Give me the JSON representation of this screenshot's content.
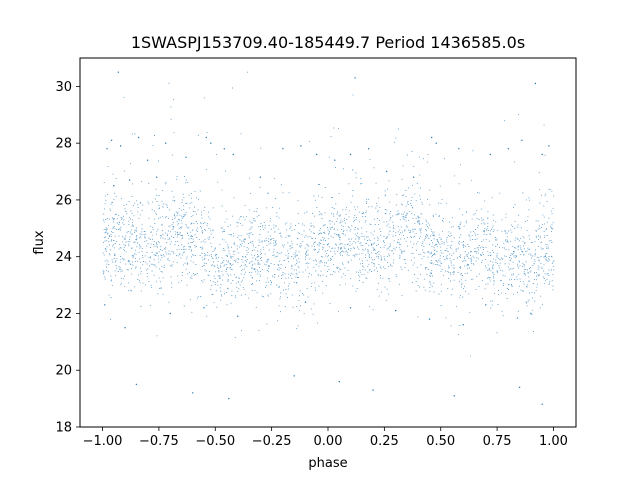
{
  "chart_data": {
    "type": "scatter",
    "title": "1SWASPJ153709.40-185449.7 Period 1436585.0s",
    "xlabel": "phase",
    "ylabel": "flux",
    "xlim": [
      -1.1,
      1.1
    ],
    "ylim": [
      18,
      31
    ],
    "xticks": [
      -1.0,
      -0.75,
      -0.5,
      -0.25,
      0.0,
      0.25,
      0.5,
      0.75,
      1.0
    ],
    "xtick_labels": [
      "−1.00",
      "−0.75",
      "−0.50",
      "−0.25",
      "0.00",
      "0.25",
      "0.50",
      "0.75",
      "1.00"
    ],
    "yticks": [
      18,
      20,
      22,
      24,
      26,
      28,
      30
    ],
    "ytick_labels": [
      "18",
      "20",
      "22",
      "24",
      "26",
      "28",
      "30"
    ],
    "grid": false,
    "legend": "none",
    "color": "#1f77b4",
    "series": [
      {
        "phase_range": [
          -1.0,
          1.0
        ],
        "mirrored": true,
        "core_flux_band": [
          22.5,
          26.5
        ],
        "flux_range": [
          18.5,
          30.5
        ],
        "mean_flux": 24.3,
        "points": [
          [
            -0.98,
            27.8
          ],
          [
            -0.96,
            28.1
          ],
          [
            -0.95,
            26.5
          ],
          [
            -0.92,
            27.9
          ],
          [
            -0.88,
            26.7
          ],
          [
            -0.84,
            28.2
          ],
          [
            -0.8,
            27.4
          ],
          [
            -0.76,
            26.8
          ],
          [
            -0.72,
            28.0
          ],
          [
            -0.63,
            27.5
          ],
          [
            -0.54,
            28.2
          ],
          [
            -0.52,
            28.0
          ],
          [
            -0.46,
            27.8
          ],
          [
            -0.42,
            27.6
          ],
          [
            -0.3,
            26.8
          ],
          [
            -0.2,
            27.8
          ],
          [
            -0.12,
            27.9
          ],
          [
            -0.05,
            27.6
          ],
          [
            0.03,
            27.4
          ],
          [
            0.1,
            27.6
          ],
          [
            0.18,
            27.8
          ],
          [
            0.26,
            27.0
          ],
          [
            0.38,
            26.8
          ],
          [
            0.46,
            28.2
          ],
          [
            0.48,
            28.0
          ],
          [
            0.58,
            27.8
          ],
          [
            0.72,
            27.6
          ],
          [
            0.8,
            27.8
          ],
          [
            0.86,
            28.1
          ],
          [
            0.95,
            27.6
          ],
          [
            0.98,
            27.9
          ],
          [
            -0.99,
            22.3
          ],
          [
            -0.9,
            21.5
          ],
          [
            -0.7,
            22.0
          ],
          [
            -0.55,
            22.2
          ],
          [
            -0.4,
            21.9
          ],
          [
            -0.1,
            22.4
          ],
          [
            0.1,
            22.2
          ],
          [
            0.3,
            22.1
          ],
          [
            0.45,
            21.8
          ],
          [
            0.6,
            21.6
          ],
          [
            0.7,
            22.3
          ],
          [
            0.9,
            22.0
          ],
          [
            -0.85,
            19.5
          ],
          [
            -0.6,
            19.2
          ],
          [
            -0.44,
            19.0
          ],
          [
            -0.15,
            19.8
          ],
          [
            0.05,
            19.6
          ],
          [
            0.2,
            19.3
          ],
          [
            0.56,
            19.1
          ],
          [
            0.85,
            19.4
          ],
          [
            0.95,
            18.8
          ],
          [
            -0.93,
            30.5
          ],
          [
            0.12,
            30.3
          ],
          [
            0.92,
            30.1
          ]
        ]
      }
    ]
  }
}
